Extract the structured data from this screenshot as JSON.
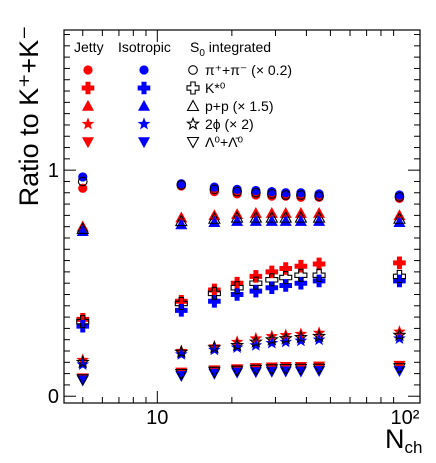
{
  "chart_data": {
    "type": "scatter",
    "xscale": "log",
    "xlim": [
      4.2,
      115
    ],
    "ylim": [
      -0.03,
      1.62
    ],
    "y_ticks": [
      0,
      1
    ],
    "x_tick_labels": [
      "10",
      "10²"
    ],
    "x_tick_values": [
      10,
      100
    ],
    "ylabel": "Ratio to K⁺+K⁻",
    "xlabel": "N",
    "xlabel_sub": "ch",
    "legend": {
      "col_jetty": "Jetty",
      "col_isotropic": "Isotropic",
      "col_integrated": "S",
      "col_integrated_sub": "0",
      "col_integrated_suffix": " integrated",
      "rows": [
        {
          "species": "pi",
          "label": "π⁺+π⁻ (× 0.2)"
        },
        {
          "species": "kstar",
          "label": "K*⁰"
        },
        {
          "species": "proton",
          "label": "p+p (× 1.5)"
        },
        {
          "species": "phi",
          "label": "2ϕ (× 2)"
        },
        {
          "species": "lambda",
          "label": "Λ⁰+Λ̄⁰"
        }
      ]
    },
    "x": [
      5,
      12.5,
      17,
      21,
      25,
      29,
      33,
      38,
      45,
      95
    ],
    "series": [
      {
        "species": "pi",
        "group": "jetty",
        "values": [
          0.92,
          0.93,
          0.905,
          0.895,
          0.89,
          0.885,
          0.885,
          0.88,
          0.88,
          0.875
        ]
      },
      {
        "species": "pi",
        "group": "isotropic",
        "values": [
          0.97,
          0.94,
          0.925,
          0.915,
          0.91,
          0.905,
          0.9,
          0.9,
          0.895,
          0.89
        ]
      },
      {
        "species": "pi",
        "group": "integrated",
        "values": [
          0.95,
          0.935,
          0.915,
          0.905,
          0.9,
          0.895,
          0.89,
          0.89,
          0.885,
          0.882
        ]
      },
      {
        "species": "kstar",
        "group": "jetty",
        "values": [
          0.34,
          0.42,
          0.47,
          0.5,
          0.53,
          0.55,
          0.565,
          0.575,
          0.585,
          0.59
        ]
      },
      {
        "species": "kstar",
        "group": "isotropic",
        "values": [
          0.31,
          0.38,
          0.42,
          0.45,
          0.465,
          0.48,
          0.49,
          0.5,
          0.51,
          0.51
        ]
      },
      {
        "species": "kstar",
        "group": "integrated",
        "values": [
          0.33,
          0.41,
          0.455,
          0.48,
          0.5,
          0.515,
          0.525,
          0.535,
          0.535,
          0.53
        ]
      },
      {
        "species": "proton",
        "group": "jetty",
        "values": [
          0.75,
          0.79,
          0.8,
          0.805,
          0.81,
          0.81,
          0.81,
          0.81,
          0.81,
          0.8
        ]
      },
      {
        "species": "proton",
        "group": "isotropic",
        "values": [
          0.73,
          0.76,
          0.77,
          0.775,
          0.775,
          0.775,
          0.775,
          0.775,
          0.775,
          0.77
        ]
      },
      {
        "species": "proton",
        "group": "integrated",
        "values": [
          0.74,
          0.775,
          0.785,
          0.79,
          0.79,
          0.79,
          0.79,
          0.79,
          0.79,
          0.785
        ]
      },
      {
        "species": "phi",
        "group": "jetty",
        "values": [
          0.16,
          0.2,
          0.22,
          0.24,
          0.255,
          0.265,
          0.27,
          0.275,
          0.28,
          0.285
        ]
      },
      {
        "species": "phi",
        "group": "isotropic",
        "values": [
          0.14,
          0.185,
          0.205,
          0.215,
          0.225,
          0.235,
          0.24,
          0.245,
          0.25,
          0.255
        ]
      },
      {
        "species": "phi",
        "group": "integrated",
        "values": [
          0.15,
          0.195,
          0.215,
          0.225,
          0.24,
          0.25,
          0.255,
          0.26,
          0.265,
          0.27
        ]
      },
      {
        "species": "lambda",
        "group": "jetty",
        "values": [
          0.08,
          0.105,
          0.115,
          0.12,
          0.125,
          0.128,
          0.13,
          0.13,
          0.132,
          0.135
        ]
      },
      {
        "species": "lambda",
        "group": "isotropic",
        "values": [
          0.07,
          0.09,
          0.1,
          0.105,
          0.107,
          0.109,
          0.11,
          0.11,
          0.112,
          0.112
        ]
      },
      {
        "species": "lambda",
        "group": "integrated",
        "values": [
          0.075,
          0.098,
          0.108,
          0.113,
          0.117,
          0.119,
          0.12,
          0.121,
          0.122,
          0.124
        ]
      }
    ]
  },
  "colors": {
    "jetty": "#ff0000",
    "isotropic": "#0000ff",
    "integrated": "#000000"
  }
}
